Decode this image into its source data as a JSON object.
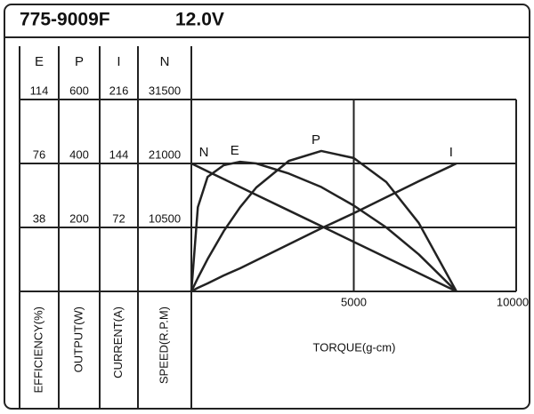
{
  "chart_data": {
    "type": "motor-curve",
    "model": "775-9009F",
    "voltage": "12.0V",
    "xlabel": "TORQUE(g-cm)",
    "xlim": [
      0,
      10000
    ],
    "xticks": [
      5000,
      10000
    ],
    "axes": [
      {
        "header": "E",
        "label": "EFFICIENCY(%)",
        "ylim": [
          0,
          114
        ],
        "yticks": [
          38,
          76,
          114
        ]
      },
      {
        "header": "P",
        "label": "OUTPUT(W)",
        "ylim": [
          0,
          600
        ],
        "yticks": [
          200,
          400,
          600
        ]
      },
      {
        "header": "I",
        "label": "CURRENT(A)",
        "ylim": [
          0,
          216
        ],
        "yticks": [
          72,
          144,
          216
        ]
      },
      {
        "header": "N",
        "label": "SPEED(R.P.M)",
        "ylim": [
          0,
          31500
        ],
        "yticks": [
          10500,
          21000,
          31500
        ]
      }
    ],
    "x": [
      0,
      200,
      500,
      1000,
      1500,
      2000,
      3000,
      4000,
      5000,
      6000,
      7000,
      8160
    ],
    "series": [
      {
        "name": "N",
        "axis": 3,
        "color": "#222222",
        "values": [
          21000,
          20490,
          19710,
          18430,
          17140,
          15850,
          13280,
          10710,
          8130,
          5560,
          2990,
          0
        ]
      },
      {
        "name": "E",
        "axis": 0,
        "color": "#222222",
        "values": [
          0,
          50,
          68,
          75,
          77,
          76,
          70,
          62,
          51,
          38,
          22,
          0
        ]
      },
      {
        "name": "P",
        "axis": 1,
        "color": "#222222",
        "values": [
          0,
          42,
          101,
          189,
          263,
          325,
          408,
          439,
          417,
          342,
          214,
          0
        ]
      },
      {
        "name": "I",
        "axis": 2,
        "color": "#222222",
        "values": [
          0,
          4,
          9,
          18,
          26,
          35,
          53,
          71,
          88,
          106,
          124,
          144
        ]
      }
    ]
  }
}
